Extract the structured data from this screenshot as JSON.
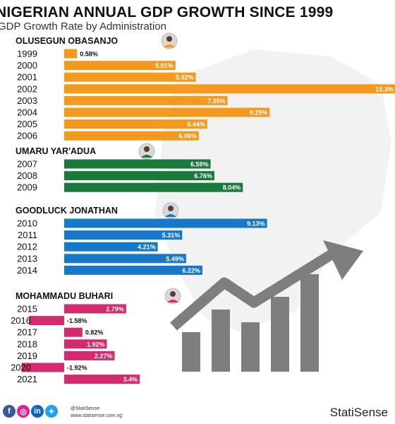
{
  "header": {
    "title": "NIGERIAN ANNUAL GDP GROWTH SINCE 1999",
    "subtitle": "GDP Growth Rate by Administration"
  },
  "colors": {
    "obasanjo": "#f39a1e",
    "yaradua": "#1a7a3c",
    "jonathan": "#1778c8",
    "buhari": "#d42a6e"
  },
  "chart_data": {
    "type": "bar",
    "orientation": "horizontal",
    "title": "NIGERIAN ANNUAL GDP GROWTH SINCE 1999",
    "subtitle": "GDP Growth Rate by Administration",
    "unit": "%",
    "groups": [
      {
        "name": "OLUSEGUN OBASANJO",
        "color_key": "obasanjo",
        "bars": [
          {
            "year": "1999",
            "value": 0.58,
            "label": "0.58%"
          },
          {
            "year": "2000",
            "value": 5.01,
            "label": "5.01%"
          },
          {
            "year": "2001",
            "value": 5.92,
            "label": "5.92%"
          },
          {
            "year": "2002",
            "value": 15.3,
            "label": "15.3%"
          },
          {
            "year": "2003",
            "value": 7.35,
            "label": "7.35%"
          },
          {
            "year": "2004",
            "value": 9.25,
            "label": "9.25%"
          },
          {
            "year": "2005",
            "value": 6.44,
            "label": "6.44%"
          },
          {
            "year": "2006",
            "value": 6.06,
            "label": "6.06%"
          }
        ]
      },
      {
        "name": "UMARU YAR'ADUA",
        "color_key": "yaradua",
        "bars": [
          {
            "year": "2007",
            "value": 6.59,
            "label": "6.59%"
          },
          {
            "year": "2008",
            "value": 6.76,
            "label": "6.76%"
          },
          {
            "year": "2009",
            "value": 8.04,
            "label": "8.04%"
          }
        ]
      },
      {
        "name": "GOODLUCK JONATHAN",
        "color_key": "jonathan",
        "bars": [
          {
            "year": "2010",
            "value": 9.13,
            "label": "9.13%"
          },
          {
            "year": "2011",
            "value": 5.31,
            "label": "5.31%"
          },
          {
            "year": "2012",
            "value": 4.21,
            "label": "4.21%"
          },
          {
            "year": "2013",
            "value": 5.49,
            "label": "5.49%"
          },
          {
            "year": "2014",
            "value": 6.22,
            "label": "6.22%"
          }
        ]
      },
      {
        "name": "MOHAMMADU BUHARI",
        "color_key": "buhari",
        "bars": [
          {
            "year": "2015",
            "value": 2.79,
            "label": "2.79%"
          },
          {
            "year": "2016",
            "value": -1.58,
            "label": "-1.58%"
          },
          {
            "year": "2017",
            "value": 0.82,
            "label": "0.82%"
          },
          {
            "year": "2018",
            "value": 1.92,
            "label": "1.92%"
          },
          {
            "year": "2019",
            "value": 2.27,
            "label": "2.27%"
          },
          {
            "year": "2020",
            "value": -1.92,
            "label": "-1.92%"
          },
          {
            "year": "2021",
            "value": 3.4,
            "label": "3.4%"
          }
        ]
      }
    ]
  },
  "footer": {
    "handle": "@StatiSense",
    "site": "www.statisense.com.ng",
    "brand": "StatiSense",
    "social_icons": [
      "facebook-icon",
      "instagram-icon",
      "linkedin-icon",
      "twitter-icon"
    ]
  }
}
